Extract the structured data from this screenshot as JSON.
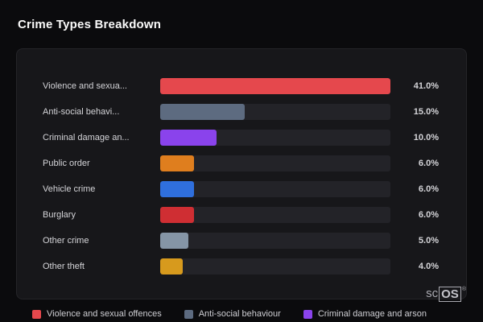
{
  "title": "Crime Types Breakdown",
  "chart_data": {
    "type": "bar",
    "orientation": "horizontal",
    "title": "Crime Types Breakdown",
    "value_unit": "%",
    "scale_note": "bars scaled so max value (41.0) fills the track",
    "grid": false,
    "legend_position": "bottom",
    "rows": [
      {
        "label": "Violence and sexua...",
        "value": 41.0,
        "display": "41.0%",
        "color": "#e5484d"
      },
      {
        "label": "Anti-social behavi...",
        "value": 15.0,
        "display": "15.0%",
        "color": "#5d6b80"
      },
      {
        "label": "Criminal damage an...",
        "value": 10.0,
        "display": "10.0%",
        "color": "#8a43ec"
      },
      {
        "label": "Public order",
        "value": 6.0,
        "display": "6.0%",
        "color": "#df7e1e"
      },
      {
        "label": "Vehicle crime",
        "value": 6.0,
        "display": "6.0%",
        "color": "#2f6fdd"
      },
      {
        "label": "Burglary",
        "value": 6.0,
        "display": "6.0%",
        "color": "#cf2e33"
      },
      {
        "label": "Other crime",
        "value": 5.0,
        "display": "5.0%",
        "color": "#8595a6"
      },
      {
        "label": "Other theft",
        "value": 4.0,
        "display": "4.0%",
        "color": "#d79a1d"
      }
    ]
  },
  "legend": [
    {
      "label": "Violence and sexual offences",
      "color": "#e5484d"
    },
    {
      "label": "Anti-social behaviour",
      "color": "#5d6b80"
    },
    {
      "label": "Criminal damage and arson",
      "color": "#8a43ec"
    }
  ],
  "watermark": {
    "prefix": "sc",
    "boxed": "OS",
    "registered": "®"
  }
}
